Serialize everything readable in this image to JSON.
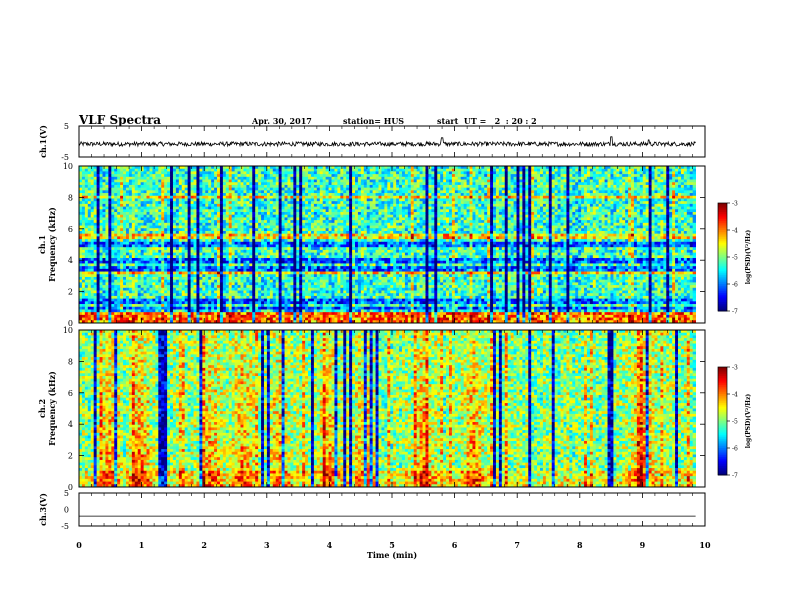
{
  "header": {
    "title": "VLF Spectra",
    "date": "Apr. 30, 2017",
    "station": "station= HUS",
    "start": "start  UT =   2  : 20 : 2"
  },
  "chart_data": [
    {
      "type": "line",
      "panel": "ch1-waveform",
      "ylabel": "ch.1(V)",
      "ylim": [
        -5,
        5
      ],
      "yticks": [
        "5",
        "-5"
      ],
      "x": [
        0,
        10
      ],
      "series_description": "noise waveform near -0.8 V with small spikes near 5.8, 8.5 and 9.1 min",
      "baseline": -0.8,
      "spikes": [
        {
          "t": 5.8,
          "v": 1.2
        },
        {
          "t": 8.5,
          "v": 1.5
        },
        {
          "t": 9.1,
          "v": 0.5
        }
      ]
    },
    {
      "type": "heatmap",
      "panel": "ch1-spectrogram",
      "ylabel": "Frequency (kHz)",
      "channel_label": "ch.1",
      "ylim": [
        0,
        10
      ],
      "yticks": [
        "0",
        "2",
        "4",
        "6",
        "8",
        "10"
      ],
      "colorbar": {
        "label": "log(PSD)(V²/Hz)",
        "ticks": [
          "-3",
          "-4",
          "-5",
          "-6",
          "-7"
        ],
        "range": [
          -7,
          -3
        ]
      },
      "bright_bands_khz": [
        0.2,
        0.4,
        0.6,
        3.2,
        5.5,
        8.0
      ],
      "dark_bands_khz": [
        0.9,
        1.4,
        3.5,
        4.0,
        5.0
      ]
    },
    {
      "type": "heatmap",
      "panel": "ch2-spectrogram",
      "ylabel": "Frequency (kHz)",
      "channel_label": "ch.2",
      "ylim": [
        0,
        10
      ],
      "yticks": [
        "0",
        "2",
        "4",
        "6",
        "8",
        "10"
      ],
      "colorbar": {
        "label": "log(PSD)(V²/Hz)",
        "ticks": [
          "-3",
          "-4",
          "-5",
          "-6",
          "-7"
        ],
        "range": [
          -7,
          -3
        ]
      },
      "hot_bursts_min": [
        0.5,
        1.0,
        2.1,
        2.6,
        3.2,
        4.0,
        4.6,
        5.5,
        6.3,
        9.0
      ]
    },
    {
      "type": "line",
      "panel": "ch3-waveform",
      "ylabel": "ch.3(V)",
      "ylim": [
        -5,
        5
      ],
      "yticks": [
        "5",
        "0",
        "-5"
      ],
      "baseline": -2
    }
  ],
  "xaxis": {
    "label": "Time (min)",
    "ticks": [
      "0",
      "1",
      "2",
      "3",
      "4",
      "5",
      "6",
      "7",
      "8",
      "9",
      "10"
    ]
  }
}
